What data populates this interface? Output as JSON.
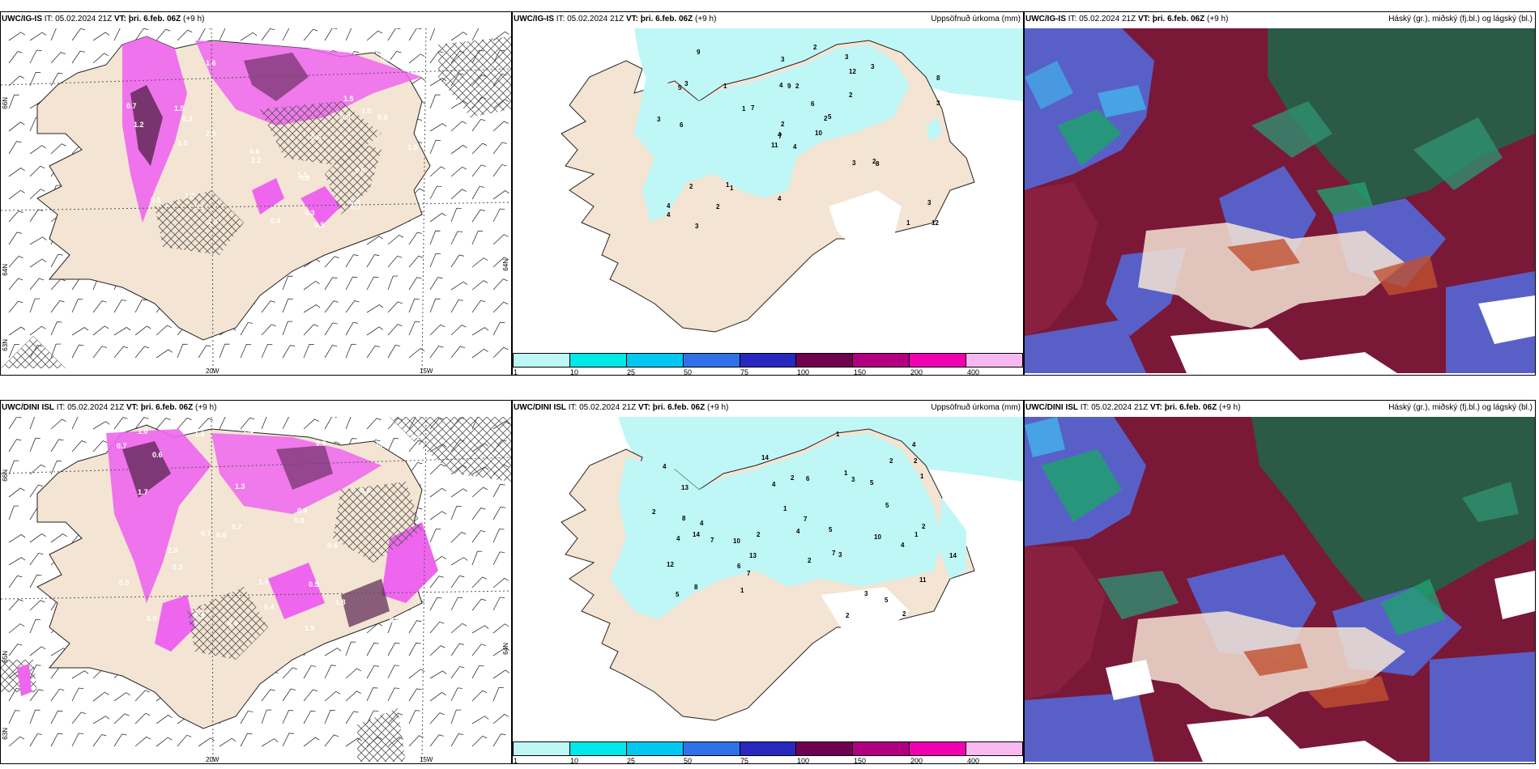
{
  "panels": [
    {
      "id": "r1c1",
      "model": "UWC/IG-IS",
      "it_label": "IT:",
      "it": "05.02.2024 21Z",
      "vt_label": "VT:",
      "vt": "þri. 6.feb. 06Z",
      "lead": "(+9 h)",
      "right_title": ""
    },
    {
      "id": "r1c2",
      "model": "UWC/IG-IS",
      "it_label": "IT:",
      "it": "05.02.2024 21Z",
      "vt_label": "VT:",
      "vt": "þri. 6.feb. 06Z",
      "lead": "(+9 h)",
      "right_title": "Uppsöfnuð úrkoma (mm)"
    },
    {
      "id": "r1c3",
      "model": "UWC/IG-IS",
      "it_label": "IT:",
      "it": "05.02.2024 21Z",
      "vt_label": "VT:",
      "vt": "þri. 6.feb. 06Z",
      "lead": "(+9 h)",
      "right_title": "Háský (gr.), miðský (fj.bl.) og lágský (bl.)"
    },
    {
      "id": "r2c1",
      "model": "UWC/DINI ISL",
      "it_label": "IT:",
      "it": "05.02.2024 21Z",
      "vt_label": "VT:",
      "vt": "þri. 6.feb. 06Z",
      "lead": "(+9 h)",
      "right_title": ""
    },
    {
      "id": "r2c2",
      "model": "UWC/DINI ISL",
      "it_label": "IT:",
      "it": "05.02.2024 21Z",
      "vt_label": "VT:",
      "vt": "þri. 6.feb. 06Z",
      "lead": "(+9 h)",
      "right_title": "Uppsöfnuð úrkoma (mm)"
    },
    {
      "id": "r2c3",
      "model": "UWC/DINI ISL",
      "it_label": "IT:",
      "it": "05.02.2024 21Z",
      "vt_label": "VT:",
      "vt": "þri. 6.feb. 06Z",
      "lead": "(+9 h)",
      "right_title": "Háský (gr.), miðský (fj.bl.) og lágský (bl.)"
    }
  ],
  "axis_labels": {
    "lon_20w": "20W",
    "lon_15w": "15W",
    "lat_66n": "66N",
    "lat_65n": "65N",
    "lat_64n": "64N",
    "lat_63n": "63N",
    "lat_64n_right": "64N"
  },
  "precip_colorbar": {
    "ticks": [
      "1",
      "10",
      "25",
      "50",
      "75",
      "100",
      "150",
      "200",
      "400"
    ],
    "colors": [
      "#bff7f7",
      "#00e8e8",
      "#00c8f0",
      "#3070e8",
      "#2828c0",
      "#700050",
      "#b00080",
      "#f000b0",
      "#f8b8f0"
    ]
  },
  "accum_labels_top": [
    "4",
    "5",
    "7",
    "4",
    "2",
    "1",
    "3",
    "2",
    "12",
    "10",
    "9",
    "12",
    "6",
    "8",
    "11",
    "2",
    "3",
    "4",
    "6",
    "2",
    "7",
    "4",
    "2",
    "9",
    "5",
    "8",
    "3",
    "3",
    "3",
    "3",
    "3",
    "4",
    "4",
    "2",
    "1",
    "3",
    "1",
    "1",
    "3",
    "2",
    "2",
    "1"
  ],
  "accum_labels_bottom": [
    "2",
    "14",
    "7",
    "4",
    "11",
    "13",
    "8",
    "10",
    "5",
    "2",
    "3",
    "5",
    "7",
    "14",
    "5",
    "12",
    "10",
    "7",
    "2",
    "5",
    "4",
    "6",
    "5",
    "14",
    "2",
    "8",
    "7",
    "4",
    "1",
    "2",
    "3",
    "4",
    "6",
    "1",
    "4",
    "4",
    "1",
    "3",
    "2",
    "2",
    "13",
    "2",
    "1",
    "1",
    "2",
    "4",
    "1"
  ],
  "snow_labels_top": [
    "0.5",
    "1.6",
    "1.3",
    "1.5",
    "1.0",
    "0.3",
    "1.9",
    "2.0",
    "2.2",
    "1.3",
    "0.5",
    "0.7",
    "0.6",
    "1.1",
    "0.8",
    "0.5",
    "1.2",
    "0.3",
    "0.6",
    "0.9",
    "0.5",
    "0.8",
    "1.0",
    "0.7",
    "0.6",
    "1.5",
    "1.0",
    "0.3",
    "0.4"
  ],
  "snow_labels_bottom": [
    "0.5",
    "1.9",
    "2.3",
    "1.8",
    "1.6",
    "0.6",
    "0.7",
    "0.9",
    "2.5",
    "1.3",
    "0.5",
    "0.4",
    "0.7",
    "1.4",
    "0.9",
    "0.8",
    "1.7",
    "0.3",
    "0.6",
    "0.7",
    "0.5",
    "1.3",
    "0.4",
    "0.9",
    "0.6",
    "2.0",
    "0.5",
    "0.3",
    "1.0",
    "0.4"
  ],
  "colors": {
    "land": "#f3e4d3",
    "sea": "#ffffff",
    "snow_light": "#ee66ee",
    "snow_dark": "#5a2450",
    "accum": "#bff7f7",
    "cloud_high": "#2b5a47",
    "cloud_mid": "#7a1838",
    "cloud_low": "#5860c8"
  }
}
